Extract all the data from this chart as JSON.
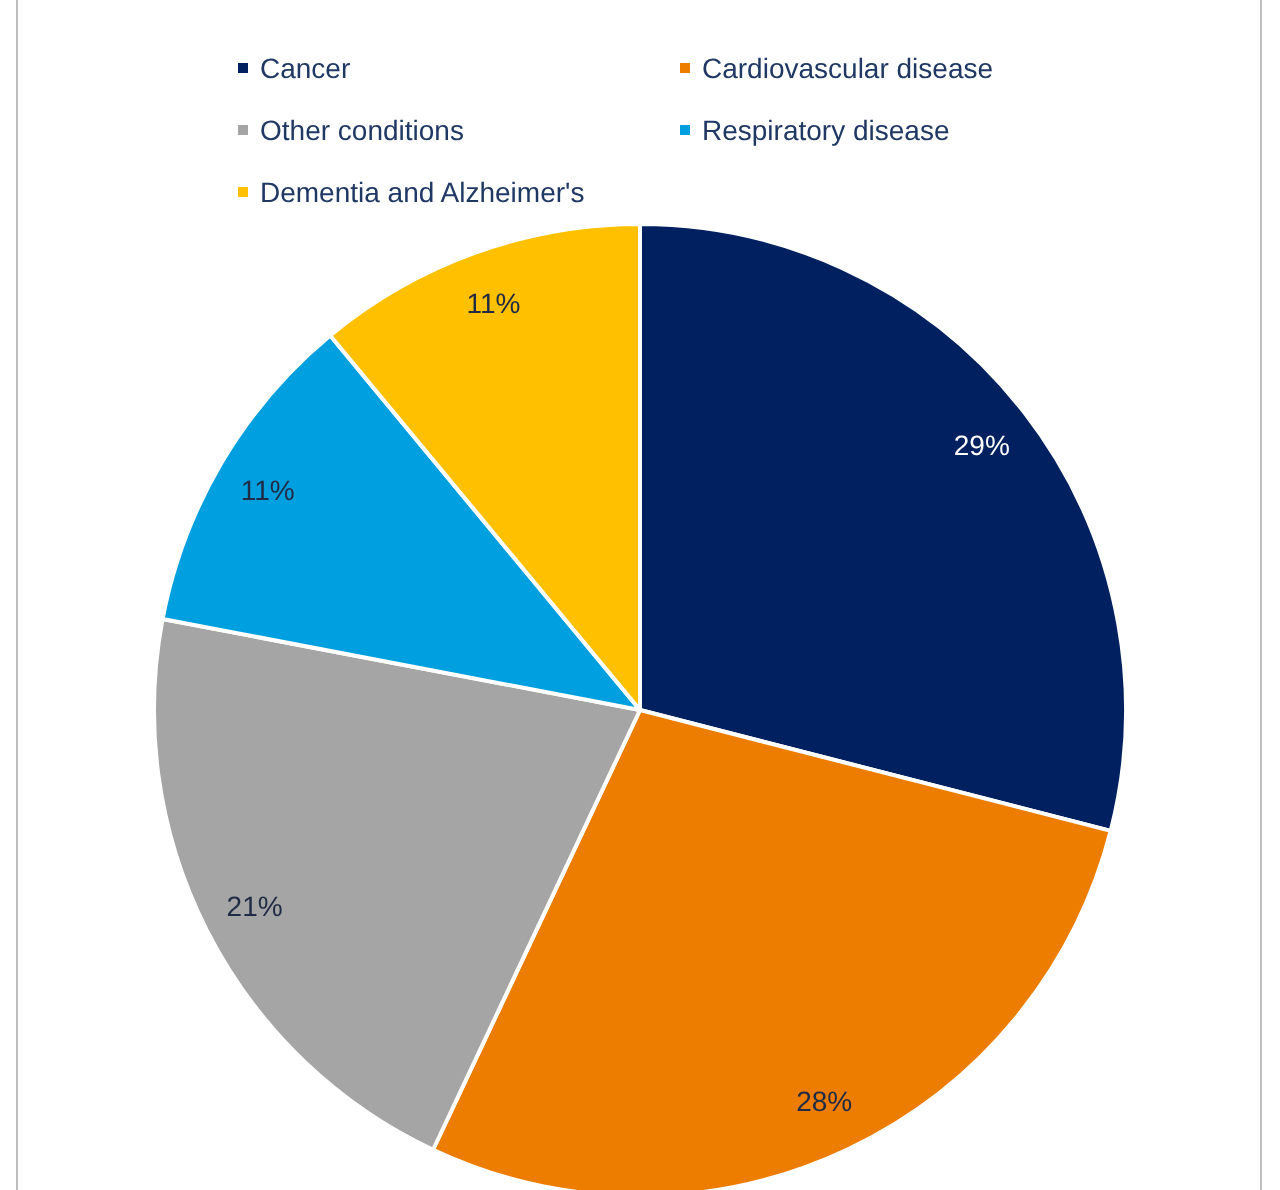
{
  "chart_data": {
    "type": "pie",
    "categories": [
      "Cancer",
      "Cardiovascular disease",
      "Other conditions",
      "Respiratory disease",
      "Dementia and Alzheimer's"
    ],
    "values": [
      29,
      28,
      21,
      11,
      11
    ],
    "colors": [
      "#002060",
      "#ed7d00",
      "#a5a5a5",
      "#00a0e0",
      "#ffc000"
    ],
    "value_labels": [
      "29%",
      "28%",
      "21%",
      "11%",
      "11%"
    ],
    "legend": "top"
  }
}
